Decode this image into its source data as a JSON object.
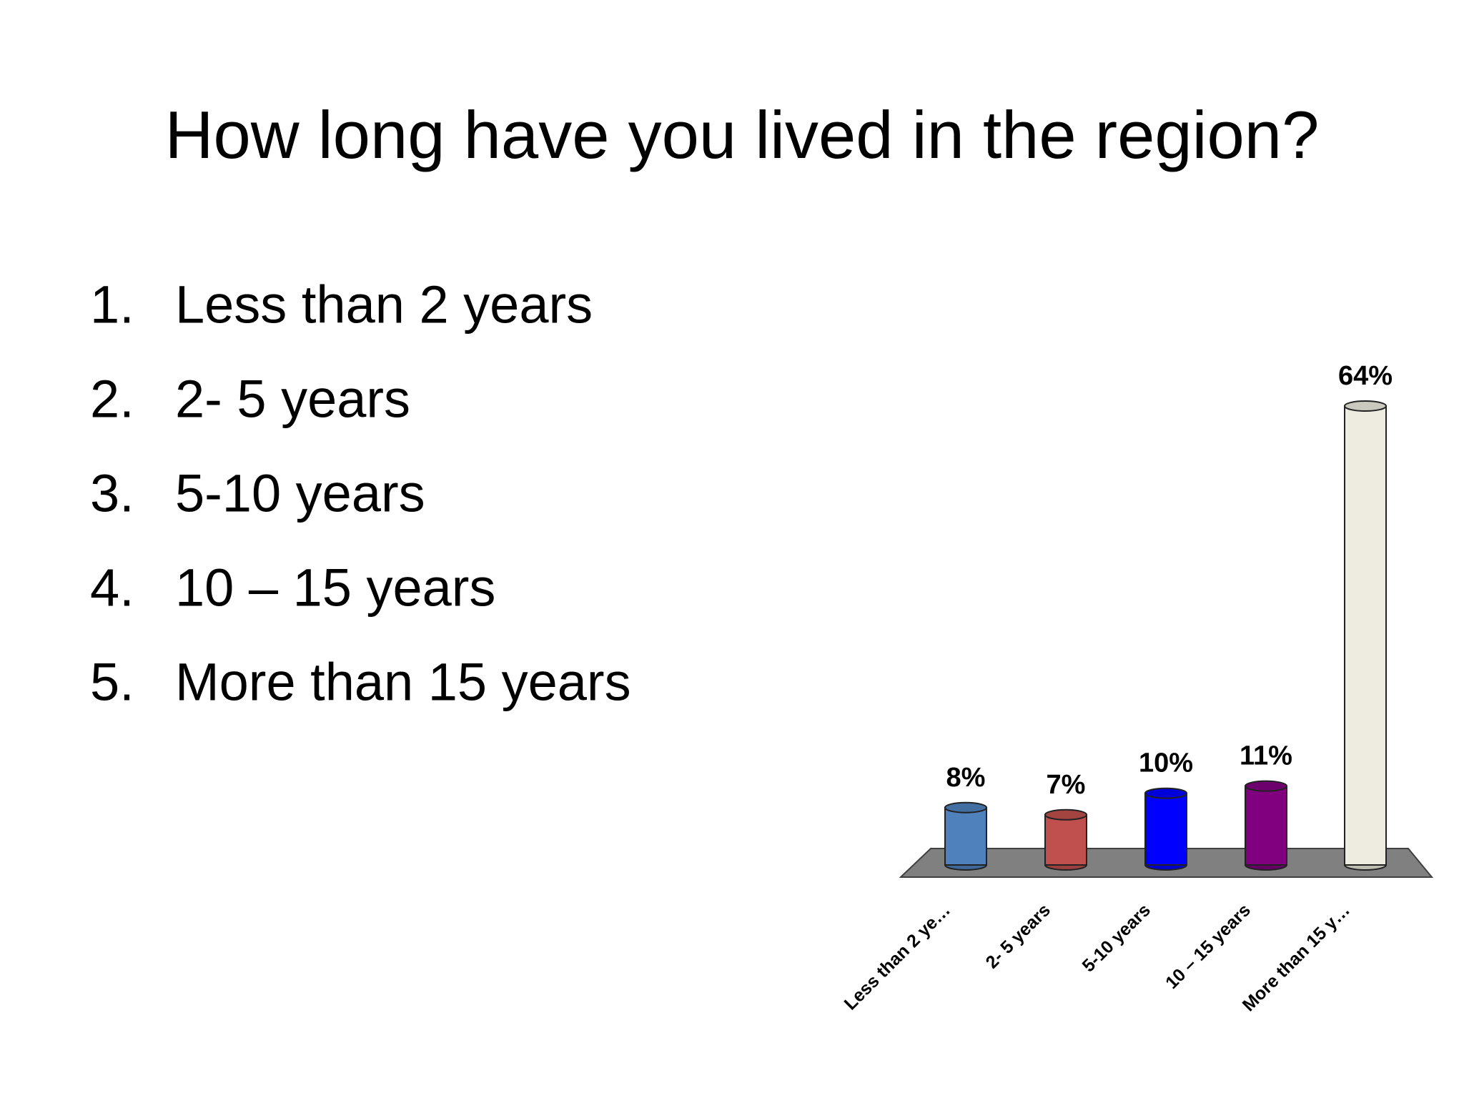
{
  "header": {
    "title": "How long have you lived in the region?"
  },
  "list": [
    {
      "number": "1.",
      "text": "Less than 2 years"
    },
    {
      "number": "2.",
      "text": "2- 5 years"
    },
    {
      "number": "3.",
      "text": "5-10 years"
    },
    {
      "number": "4.",
      "text": "10 – 15 years"
    },
    {
      "number": "5.",
      "text": "More than 15 years"
    }
  ],
  "chart_data": {
    "type": "bar",
    "categories": [
      "Less than 2 ye…",
      "2- 5 years",
      "5-10 years",
      "10 – 15 years",
      "More than 15 y…"
    ],
    "values": [
      8,
      7,
      10,
      11,
      64
    ],
    "value_labels": [
      "8%",
      "7%",
      "10%",
      "11%",
      "64%"
    ],
    "colors": [
      "#4f81bd",
      "#c0504d",
      "#0000ff",
      "#800080",
      "#eeece1"
    ]
  }
}
